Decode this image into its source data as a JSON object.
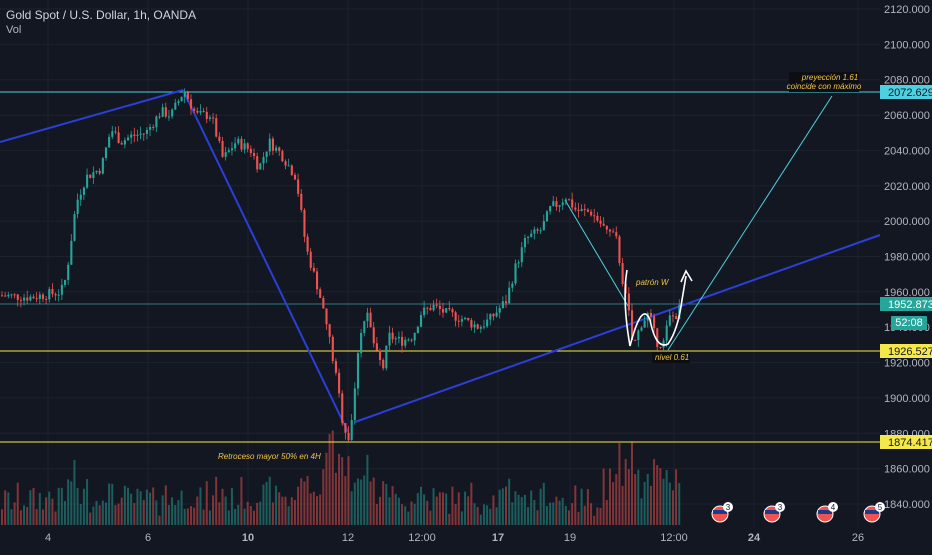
{
  "header": {
    "symbol": "Gold Spot / U.S. Dollar, 1h, OANDA",
    "volume_label": "Vol"
  },
  "price_labels": {
    "last": "1952.873",
    "countdown": "52:08",
    "level_high": "2072.629",
    "level_mid": "1926.527",
    "level_low": "1874.417"
  },
  "annotations": {
    "projection_line1": "preyección 1.61",
    "projection_line2": "coincide con máximo",
    "pattern": "patrón W",
    "fib_level": "nivel 0.61",
    "retracement": "Retroceso mayor 50% en 4H"
  },
  "colors": {
    "background": "#131722",
    "bull": "#26a69a",
    "bear": "#ef5350",
    "cyan_line": "#4dd0e1",
    "yellow_line": "#f5e94a",
    "trend_line": "#2b3fd6",
    "annotation_text": "#f5c542"
  },
  "event_icons": [
    "us-flag-icon",
    "us-flag-icon",
    "us-flag-icon",
    "us-flag-icon"
  ],
  "event_counts": [
    "3",
    "3",
    "4",
    "5"
  ],
  "chart_data": {
    "type": "candlestick",
    "ylim": [
      1825,
      2125
    ],
    "yticks": [
      1840,
      1860,
      1880,
      1900,
      1920,
      1940,
      1960,
      1980,
      2000,
      2020,
      2040,
      2060,
      2080,
      2100,
      2120
    ],
    "ytick_labels": [
      "1840.000",
      "1860.000",
      "1880.000",
      "1900.000",
      "1920.000",
      "1940.000",
      "1960.000",
      "1980.000",
      "2000.000",
      "2020.000",
      "2040.000",
      "2060.000",
      "2080.000",
      "2100.000",
      "2120.000"
    ],
    "x_labels": [
      "4",
      "6",
      "10",
      "12",
      "12:00",
      "17",
      "19",
      "12:00",
      "24",
      "26"
    ],
    "x_label_positions": [
      48,
      148,
      248,
      348,
      422,
      498,
      570,
      674,
      754,
      858
    ],
    "horizontal_levels": [
      2072.629,
      1952.873,
      1926.527,
      1874.417
    ],
    "price_path": [
      [
        0,
        1958
      ],
      [
        30,
        1957
      ],
      [
        60,
        1960
      ],
      [
        65,
        1968
      ],
      [
        75,
        2010
      ],
      [
        85,
        2025
      ],
      [
        100,
        2030
      ],
      [
        110,
        2052
      ],
      [
        120,
        2045
      ],
      [
        130,
        2048
      ],
      [
        145,
        2050
      ],
      [
        160,
        2062
      ],
      [
        170,
        2060
      ],
      [
        183,
        2074
      ],
      [
        195,
        2060
      ],
      [
        210,
        2060
      ],
      [
        222,
        2035
      ],
      [
        235,
        2045
      ],
      [
        250,
        2040
      ],
      [
        258,
        2030
      ],
      [
        268,
        2045
      ],
      [
        280,
        2038
      ],
      [
        295,
        2025
      ],
      [
        305,
        1985
      ],
      [
        318,
        1960
      ],
      [
        328,
        1935
      ],
      [
        337,
        1905
      ],
      [
        342,
        1885
      ],
      [
        348,
        1877
      ],
      [
        353,
        1898
      ],
      [
        358,
        1935
      ],
      [
        366,
        1948
      ],
      [
        375,
        1925
      ],
      [
        382,
        1917
      ],
      [
        388,
        1935
      ],
      [
        400,
        1932
      ],
      [
        412,
        1935
      ],
      [
        420,
        1948
      ],
      [
        432,
        1952
      ],
      [
        445,
        1948
      ],
      [
        460,
        1945
      ],
      [
        478,
        1940
      ],
      [
        490,
        1945
      ],
      [
        505,
        1955
      ],
      [
        515,
        1975
      ],
      [
        525,
        1990
      ],
      [
        540,
        1995
      ],
      [
        550,
        2008
      ],
      [
        558,
        2010
      ],
      [
        565,
        2014
      ],
      [
        575,
        2006
      ],
      [
        590,
        2005
      ],
      [
        605,
        1995
      ],
      [
        615,
        1990
      ],
      [
        622,
        1965
      ],
      [
        628,
        1947
      ],
      [
        632,
        1928
      ],
      [
        640,
        1942
      ],
      [
        648,
        1948
      ],
      [
        655,
        1932
      ],
      [
        662,
        1930
      ],
      [
        668,
        1945
      ],
      [
        675,
        1947
      ],
      [
        680,
        1952
      ]
    ],
    "volume_ylim": [
      0,
      180
    ]
  }
}
